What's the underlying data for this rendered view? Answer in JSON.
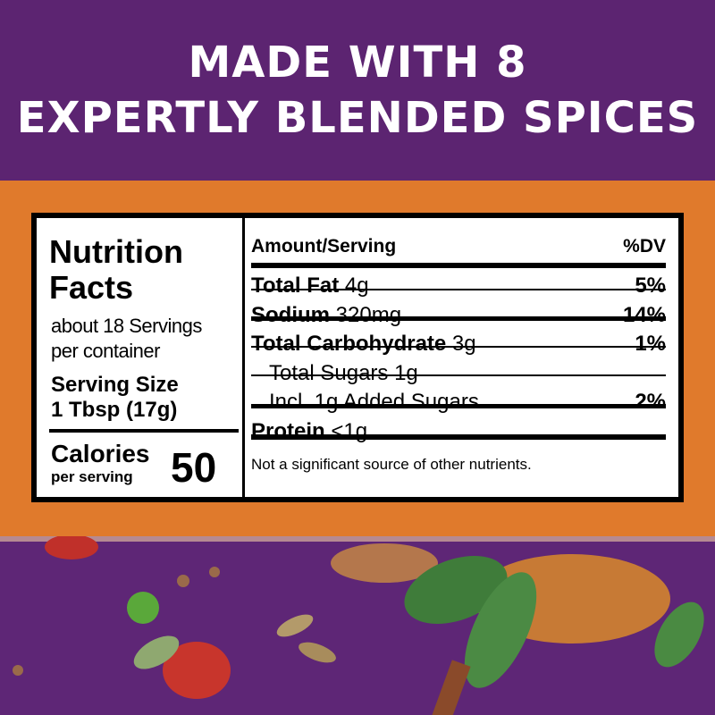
{
  "headline": {
    "line1": "MADE WITH 8",
    "line2": "EXPERTLY BLENDED SPICES"
  },
  "nutrition": {
    "title": "Nutrition Facts",
    "servings": [
      "about 18 Servings",
      "per container"
    ],
    "serving_size_label": "Serving Size",
    "serving_size": "1 Tbsp (17g)",
    "calories_label": "Calories",
    "calories_sub": "per serving",
    "calories": "50",
    "amount_header": "Amount/Serving",
    "dv_header": "%DV",
    "rows": [
      {
        "name": "Total Fat",
        "amount": "4g",
        "dv": "5%"
      },
      {
        "name": "Sodium",
        "amount": "320mg",
        "dv": "14%"
      },
      {
        "name": "Total Carbohydrate",
        "amount": "3g",
        "dv": "1%"
      },
      {
        "label": "Total Sugars 1g"
      },
      {
        "label": "Incl. 1g Added Sugars",
        "dv": "2%"
      },
      {
        "name": "Protein",
        "amount": "<1g"
      }
    ],
    "footnote": "Not a significant source of other nutrients."
  }
}
